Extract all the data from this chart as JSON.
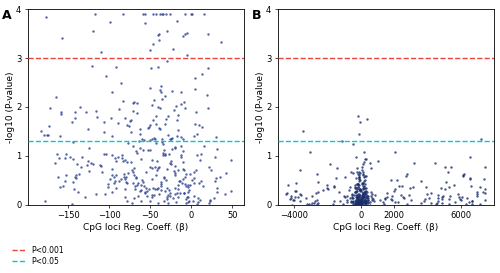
{
  "panel_A": {
    "label": "A",
    "xlabel": "CpG loci Reg. Coeff. (β)",
    "ylabel": "-log10 (P-value)",
    "xlim": [
      -200,
      65
    ],
    "ylim": [
      0,
      4
    ],
    "xticks": [
      -150,
      -100,
      -50,
      0,
      50
    ],
    "yticks": [
      0,
      1,
      2,
      3,
      4
    ],
    "red_line_y": 3,
    "cyan_line_y": 1.3,
    "dot_color": "#2b3f8c",
    "dot_size": 3,
    "dot_alpha": 0.8
  },
  "panel_B": {
    "label": "B",
    "xlabel": "CpG loci Reg. Coeff. (β)",
    "ylabel": "-log10 (P-value)",
    "xlim": [
      -5000,
      8000
    ],
    "ylim": [
      0,
      4
    ],
    "xticks": [
      -4000,
      0,
      2000,
      6000
    ],
    "yticks": [
      0,
      1,
      2,
      3,
      4
    ],
    "red_line_y": 3,
    "cyan_line_y": 1.3,
    "dot_color": "#1a2d6b",
    "dot_size": 3,
    "dot_alpha": 0.8
  },
  "red_line_color": "#e8453c",
  "cyan_line_color": "#00c8d4",
  "legend_red_label": "P<0.001",
  "legend_cyan_label": "P<0.05",
  "background_color": "#ffffff",
  "panel_bg": "#ffffff"
}
